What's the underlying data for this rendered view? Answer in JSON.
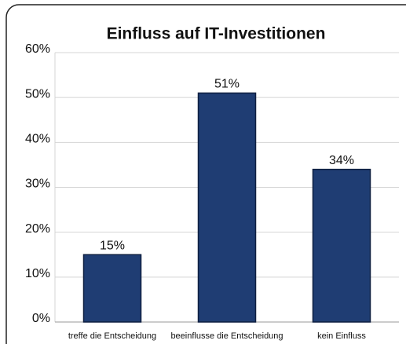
{
  "chart_data": {
    "type": "bar",
    "title": "Einfluss auf IT-Investitionen",
    "categories": [
      "treffe die Entscheidung",
      "beeinflusse die Entscheidung",
      "kein Einfluss"
    ],
    "values": [
      15,
      51,
      34
    ],
    "value_labels": [
      "15%",
      "51%",
      "34%"
    ],
    "color": "#1f3d73",
    "ylim": [
      0,
      60
    ],
    "yticks": [
      {
        "value": 0,
        "label": "0%"
      },
      {
        "value": 10,
        "label": "10%"
      },
      {
        "value": 20,
        "label": "20%"
      },
      {
        "value": 30,
        "label": "30%"
      },
      {
        "value": 40,
        "label": "40%"
      },
      {
        "value": 50,
        "label": "50%"
      },
      {
        "value": 60,
        "label": "60%"
      }
    ],
    "grid": true
  }
}
